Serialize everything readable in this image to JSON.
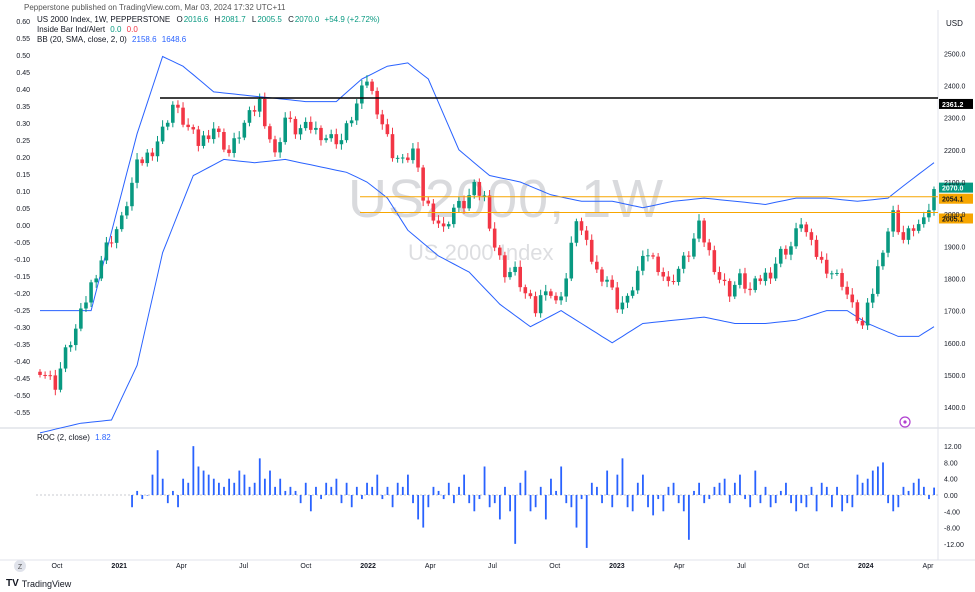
{
  "header": {
    "publisher": "Pepperstone published on TradingView.com, Mar 03, 2024 17:32 UTC+11"
  },
  "legend": {
    "symbol_line": "US 2000 Index, 1W, PEPPERSTONE",
    "o_label": "O",
    "o": "2016.6",
    "h_label": "H",
    "h": "2081.7",
    "l_label": "L",
    "l": "2005.5",
    "c_label": "C",
    "c": "2070.0",
    "change": "+54.9 (+2.72%)",
    "indicator1_name": "Inside Bar Ind/Alert",
    "indicator1_v1": "0.0",
    "indicator1_v2": "0.0",
    "indicator2_name": "BB (20, SMA, close, 2, 0)",
    "indicator2_v1": "2158.6",
    "indicator2_v2": "1648.6",
    "roc_name": "ROC (2, close)",
    "roc_value": "1.82"
  },
  "watermark": {
    "big": "US2000, 1W",
    "small": "US 2000 Index"
  },
  "currency": "USD",
  "logo": {
    "mark": "TV",
    "text": "TradingView"
  },
  "colors": {
    "up": "#089981",
    "down": "#f23645",
    "band": "#2962ff",
    "level": "#f7a600",
    "line": "#000000",
    "roc": "#2962ff"
  },
  "chart_data": {
    "type": "candlestick",
    "title": "US2000, 1W",
    "x_tick_labels": [
      "Oct",
      "2021",
      "Apr",
      "Jul",
      "Oct",
      "2022",
      "Apr",
      "Jul",
      "Oct",
      "2023",
      "Apr",
      "Jul",
      "Oct",
      "2024",
      "Apr"
    ],
    "y_right_ticks": [
      "2500.0",
      "2400.0",
      "2300.0",
      "2200.0",
      "2100.0",
      "2000.0",
      "1900.0",
      "1800.0",
      "1700.0",
      "1600.0",
      "1500.0",
      "1400.0"
    ],
    "y_left_ticks": [
      "0.60",
      "0.55",
      "0.50",
      "0.45",
      "0.40",
      "0.35",
      "0.30",
      "0.25",
      "0.20",
      "0.15",
      "0.10",
      "0.05",
      "0.00",
      "-0.05",
      "-0.10",
      "-0.15",
      "-0.20",
      "-0.25",
      "-0.30",
      "-0.35",
      "-0.40",
      "-0.45",
      "-0.50",
      "-0.55"
    ],
    "y_range": [
      1360,
      2560
    ],
    "horizontal_levels": [
      {
        "label": "2361.2",
        "value": 2361.2,
        "color": "#000000"
      },
      {
        "label": "2070.0",
        "value": 2070.0,
        "color": "#089981"
      },
      {
        "label": "2054.1",
        "value": 2054.1,
        "color": "#f7a600"
      },
      {
        "label": "2005.1",
        "value": 2005.1,
        "color": "#f7a600"
      }
    ],
    "close_path": [
      [
        0,
        1520
      ],
      [
        3,
        1470
      ],
      [
        5,
        1570
      ],
      [
        7,
        1640
      ],
      [
        10,
        1780
      ],
      [
        13,
        1900
      ],
      [
        16,
        1980
      ],
      [
        19,
        2150
      ],
      [
        22,
        2200
      ],
      [
        24,
        2260
      ],
      [
        26,
        2340
      ],
      [
        28,
        2290
      ],
      [
        31,
        2220
      ],
      [
        34,
        2270
      ],
      [
        37,
        2190
      ],
      [
        40,
        2280
      ],
      [
        43,
        2350
      ],
      [
        46,
        2180
      ],
      [
        48,
        2300
      ],
      [
        50,
        2260
      ],
      [
        53,
        2270
      ],
      [
        56,
        2240
      ],
      [
        59,
        2230
      ],
      [
        62,
        2340
      ],
      [
        64,
        2420
      ],
      [
        66,
        2330
      ],
      [
        69,
        2190
      ],
      [
        71,
        2160
      ],
      [
        73,
        2200
      ],
      [
        75,
        2050
      ],
      [
        77,
        2000
      ],
      [
        79,
        1950
      ],
      [
        81,
        2020
      ],
      [
        83,
        2030
      ],
      [
        85,
        2080
      ],
      [
        87,
        2050
      ],
      [
        89,
        1900
      ],
      [
        91,
        1820
      ],
      [
        93,
        1820
      ],
      [
        95,
        1750
      ],
      [
        97,
        1700
      ],
      [
        99,
        1780
      ],
      [
        101,
        1720
      ],
      [
        103,
        1800
      ],
      [
        105,
        1990
      ],
      [
        107,
        1900
      ],
      [
        109,
        1820
      ],
      [
        111,
        1800
      ],
      [
        113,
        1720
      ],
      [
        115,
        1730
      ],
      [
        117,
        1820
      ],
      [
        119,
        1880
      ],
      [
        121,
        1840
      ],
      [
        123,
        1780
      ],
      [
        125,
        1830
      ],
      [
        127,
        1880
      ],
      [
        129,
        1960
      ],
      [
        131,
        1880
      ],
      [
        133,
        1800
      ],
      [
        135,
        1760
      ],
      [
        137,
        1800
      ],
      [
        139,
        1760
      ],
      [
        141,
        1800
      ],
      [
        143,
        1820
      ],
      [
        145,
        1880
      ],
      [
        147,
        1900
      ],
      [
        149,
        1980
      ],
      [
        151,
        1900
      ],
      [
        153,
        1850
      ],
      [
        155,
        1820
      ],
      [
        157,
        1790
      ],
      [
        159,
        1710
      ],
      [
        161,
        1650
      ],
      [
        163,
        1760
      ],
      [
        165,
        1900
      ],
      [
        167,
        2000
      ],
      [
        169,
        1920
      ],
      [
        171,
        1960
      ],
      [
        173,
        1970
      ],
      [
        175,
        2070
      ]
    ],
    "bb_upper": [
      [
        0,
        1700
      ],
      [
        10,
        1700
      ],
      [
        19,
        2250
      ],
      [
        24,
        2490
      ],
      [
        28,
        2460
      ],
      [
        34,
        2380
      ],
      [
        40,
        2370
      ],
      [
        46,
        2360
      ],
      [
        52,
        2350
      ],
      [
        58,
        2350
      ],
      [
        63,
        2420
      ],
      [
        68,
        2460
      ],
      [
        72,
        2470
      ],
      [
        76,
        2420
      ],
      [
        82,
        2200
      ],
      [
        88,
        2120
      ],
      [
        94,
        2100
      ],
      [
        100,
        2060
      ],
      [
        106,
        2040
      ],
      [
        112,
        2040
      ],
      [
        118,
        2020
      ],
      [
        124,
        2040
      ],
      [
        130,
        2050
      ],
      [
        136,
        2040
      ],
      [
        142,
        2030
      ],
      [
        148,
        2050
      ],
      [
        154,
        2050
      ],
      [
        160,
        2040
      ],
      [
        166,
        2050
      ],
      [
        170,
        2100
      ],
      [
        175,
        2160
      ]
    ],
    "bb_lower": [
      [
        0,
        1320
      ],
      [
        8,
        1350
      ],
      [
        14,
        1360
      ],
      [
        19,
        1530
      ],
      [
        24,
        1880
      ],
      [
        30,
        2120
      ],
      [
        36,
        2170
      ],
      [
        42,
        2160
      ],
      [
        48,
        2170
      ],
      [
        54,
        2150
      ],
      [
        60,
        2130
      ],
      [
        64,
        2100
      ],
      [
        68,
        2050
      ],
      [
        72,
        1950
      ],
      [
        78,
        1870
      ],
      [
        84,
        1820
      ],
      [
        90,
        1720
      ],
      [
        96,
        1650
      ],
      [
        102,
        1700
      ],
      [
        108,
        1640
      ],
      [
        112,
        1600
      ],
      [
        118,
        1660
      ],
      [
        124,
        1670
      ],
      [
        130,
        1680
      ],
      [
        136,
        1660
      ],
      [
        142,
        1660
      ],
      [
        148,
        1670
      ],
      [
        154,
        1700
      ],
      [
        158,
        1700
      ],
      [
        162,
        1660
      ],
      [
        168,
        1620
      ],
      [
        172,
        1620
      ],
      [
        175,
        1650
      ]
    ],
    "roc": {
      "ticks": [
        "12.00",
        "8.00",
        "4.00",
        "0.00",
        "-4.00",
        "-8.00",
        "-12.00"
      ],
      "range": [
        -14,
        14
      ],
      "values": [
        -3,
        1,
        -1,
        0,
        5,
        11,
        4,
        -2,
        1,
        -3,
        4,
        3,
        12,
        7,
        6,
        5,
        4,
        3,
        2,
        4,
        3,
        6,
        5,
        2,
        3,
        9,
        4,
        6,
        2,
        4,
        1,
        2,
        1,
        -2,
        3,
        -4,
        2,
        -1,
        3,
        2,
        4,
        -2,
        3,
        -3,
        2,
        -1,
        3,
        2,
        5,
        -1,
        2,
        -3,
        3,
        2,
        5,
        -2,
        -6,
        -8,
        -3,
        2,
        1,
        -1,
        3,
        -2,
        2,
        5,
        -2,
        -4,
        -1,
        7,
        -3,
        -2,
        -6,
        2,
        -4,
        -12,
        3,
        6,
        -4,
        -3,
        2,
        -6,
        4,
        1,
        7,
        -2,
        -3,
        -8,
        -1,
        -13,
        3,
        2,
        -2,
        6,
        -3,
        5,
        9,
        -3,
        -4,
        3,
        5,
        -3,
        -5,
        -1,
        -4,
        2,
        3,
        -2,
        -4,
        -11,
        1,
        3,
        -2,
        -1,
        2,
        3,
        4,
        -2,
        3,
        5,
        -1,
        -3,
        6,
        -2,
        2,
        -3,
        -2,
        1,
        3,
        -2,
        -4,
        -2,
        -3,
        2,
        -4,
        3,
        2,
        -3,
        2,
        -4,
        -2,
        -3,
        5,
        3,
        4,
        6,
        7,
        8,
        -2,
        -4,
        -3,
        2,
        1,
        3,
        4,
        2,
        -1,
        1.82
      ]
    }
  }
}
